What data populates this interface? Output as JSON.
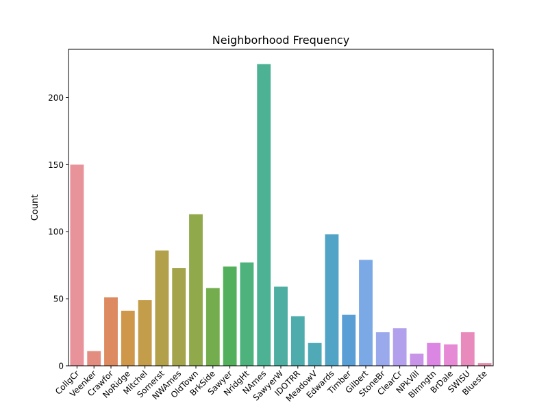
{
  "chart_data": {
    "type": "bar",
    "title": "Neighborhood Frequency",
    "xlabel": "",
    "ylabel": "Count",
    "ylim": [
      0,
      236
    ],
    "yticks": [
      0,
      50,
      100,
      150,
      200
    ],
    "grid": false,
    "legend": "none",
    "categories": [
      "CollgCr",
      "Veenker",
      "Crawfor",
      "NoRidge",
      "Mitchel",
      "Somerst",
      "NWAmes",
      "OldTown",
      "BrkSide",
      "Sawyer",
      "NridgHt",
      "NAmes",
      "SawyerW",
      "IDOTRR",
      "MeadowV",
      "Edwards",
      "Timber",
      "Gilbert",
      "StoneBr",
      "ClearCr",
      "NPkVill",
      "Blmngtn",
      "BrDale",
      "SWISU",
      "Blueste"
    ],
    "values": [
      150,
      11,
      51,
      41,
      49,
      86,
      73,
      113,
      58,
      74,
      77,
      225,
      59,
      37,
      17,
      98,
      38,
      79,
      25,
      28,
      9,
      17,
      16,
      25,
      2
    ],
    "colors": [
      "#e8929a",
      "#e38c80",
      "#de8a60",
      "#cf9749",
      "#c39d4a",
      "#b2a04b",
      "#a3a44c",
      "#90aa4b",
      "#73ad4e",
      "#52b05c",
      "#4db27c",
      "#4db193",
      "#4daea1",
      "#4facac",
      "#4fa9b7",
      "#52a4c6",
      "#5a9ed6",
      "#7aa9e5",
      "#9aa8ec",
      "#b3a0ec",
      "#c894e8",
      "#dc86e3",
      "#e78ad6",
      "#e98abc",
      "#e78eab"
    ]
  }
}
